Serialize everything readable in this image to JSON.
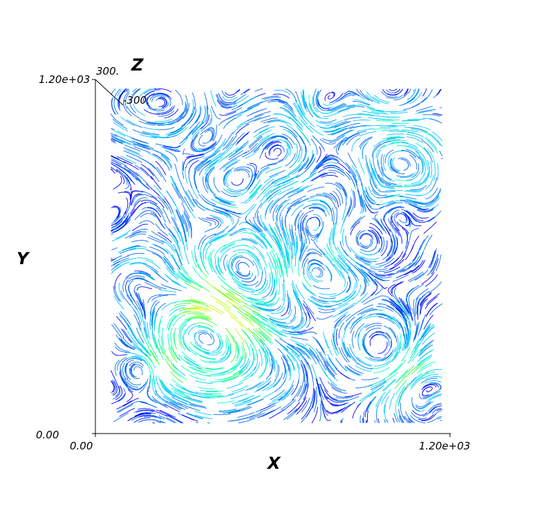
{
  "chart_data": {
    "type": "streamline",
    "x_axis": {
      "label": "X",
      "range": [
        0,
        1200
      ],
      "tick_labels": [
        "0.00",
        "1.20e+03"
      ]
    },
    "y_axis": {
      "label": "Y",
      "range": [
        0,
        1200
      ],
      "tick_labels": [
        "0.00",
        "1.20e+03"
      ]
    },
    "z_axis": {
      "label": "Z",
      "range": [
        -300,
        300
      ],
      "tick_labels": [
        "300.",
        "-300."
      ]
    },
    "colormap": [
      "#0000ff",
      "#0a6cf0",
      "#00c8ff",
      "#00ffc0",
      "#40ff40",
      "#c0ff00"
    ],
    "grid": false,
    "legend": "none"
  }
}
